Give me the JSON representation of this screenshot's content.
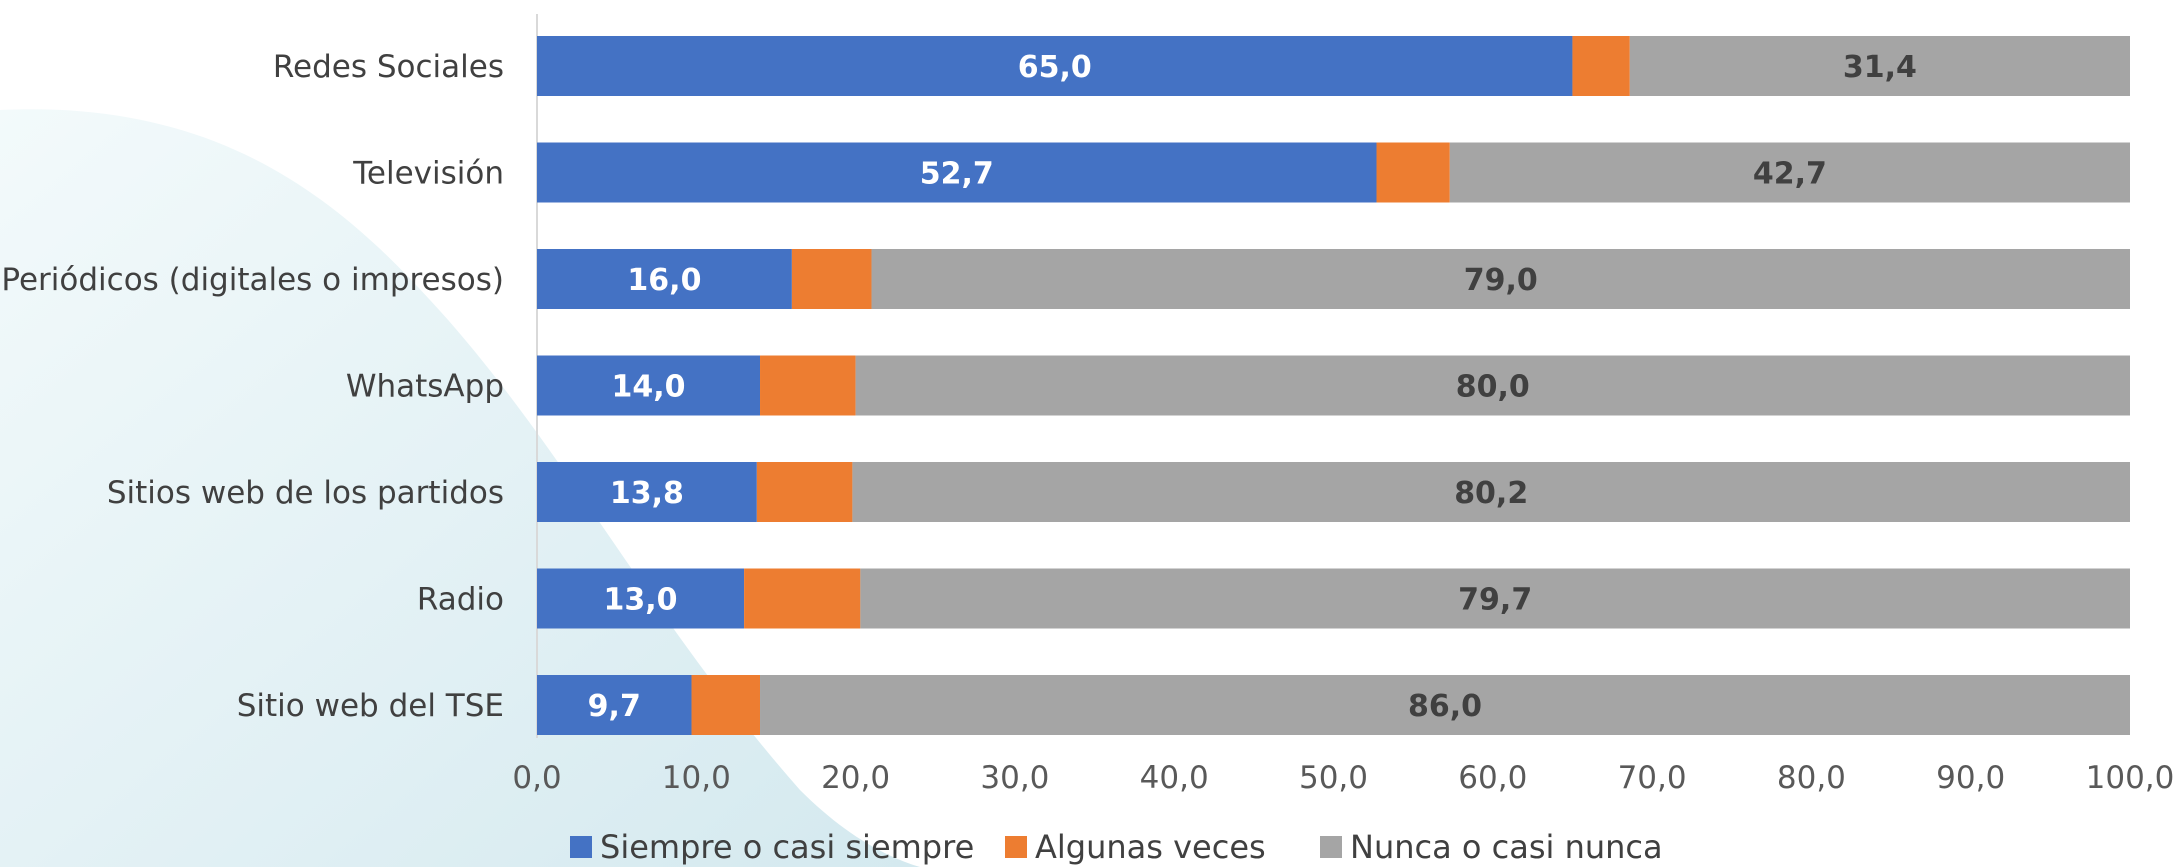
{
  "chart_data": {
    "type": "bar",
    "orientation": "horizontal",
    "stacked": true,
    "categories": [
      "Redes Sociales",
      "Televisión",
      "Periódicos (digitales o impresos)",
      "WhatsApp",
      "Sitios web de los partidos",
      "Radio",
      "Sitio web del TSE"
    ],
    "series": [
      {
        "name": "Siempre o casi siempre",
        "values": [
          65.0,
          52.7,
          16.0,
          14.0,
          13.8,
          13.0,
          9.7
        ],
        "labels": [
          "65,0",
          "52,7",
          "16,0",
          "14,0",
          "13,8",
          "13,0",
          "9,7"
        ],
        "color": "#4472C4"
      },
      {
        "name": "Algunas veces",
        "values": [
          3.6,
          4.6,
          5.0,
          6.0,
          6.0,
          7.3,
          4.3
        ],
        "labels": [
          "",
          "",
          "",
          "",
          "",
          "",
          ""
        ],
        "color": "#ED7D31"
      },
      {
        "name": "Nunca o casi nunca",
        "values": [
          31.4,
          42.7,
          79.0,
          80.0,
          80.2,
          79.7,
          86.0
        ],
        "labels": [
          "31,4",
          "42,7",
          "79,0",
          "80,0",
          "80,2",
          "79,7",
          "86,0"
        ],
        "color": "#A5A5A5"
      }
    ],
    "xlim": [
      0,
      100
    ],
    "x_ticks": [
      "0,0",
      "10,0",
      "20,0",
      "30,0",
      "40,0",
      "50,0",
      "60,0",
      "70,0",
      "80,0",
      "90,0",
      "100,0"
    ],
    "x_tick_values": [
      0,
      10,
      20,
      30,
      40,
      50,
      60,
      70,
      80,
      90,
      100
    ],
    "legend_position": "bottom",
    "grid": false,
    "background_color": "#E4F2F5"
  }
}
